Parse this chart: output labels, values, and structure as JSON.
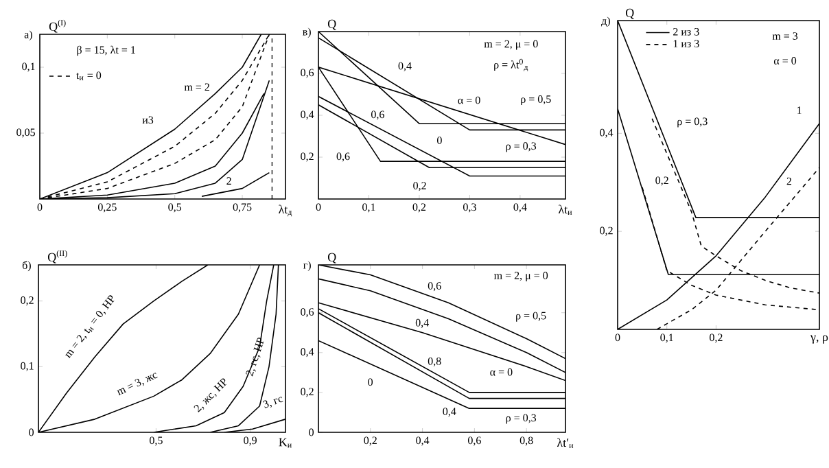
{
  "chart_data": [
    {
      "type": "line",
      "title": "а)",
      "ylabel": "Q$^{(I)}$",
      "xlabel": "λt$_{д}$",
      "xlim": [
        0,
        0.91
      ],
      "ylim": [
        0,
        0.125
      ],
      "xticks": [
        {
          "value": 0,
          "label": "0"
        },
        {
          "value": 0.25,
          "label": "0,25"
        },
        {
          "value": 0.5,
          "label": "0,5"
        },
        {
          "value": 0.75,
          "label": "0,75"
        }
      ],
      "yticks": [
        {
          "value": 0.05,
          "label": "0,05"
        },
        {
          "value": 0.1,
          "label": "0,1"
        }
      ],
      "legend": "top left",
      "series": [
        {
          "color": "#000000",
          "line_style": "solid",
          "x": [
            0,
            0.25,
            0.5,
            0.65,
            0.75,
            0.82
          ],
          "values": [
            0,
            0.02,
            0.053,
            0.08,
            0.1,
            0.125
          ]
        },
        {
          "name": "t$_{и}$ = 0",
          "color": "#000000",
          "line_style": "dashed",
          "x": [
            0,
            0.25,
            0.5,
            0.65,
            0.75,
            0.85
          ],
          "values": [
            0,
            0.013,
            0.04,
            0.065,
            0.09,
            0.125
          ]
        },
        {
          "color": "#000000",
          "line_style": "dashed",
          "x": [
            0,
            0.25,
            0.5,
            0.65,
            0.75,
            0.85
          ],
          "values": [
            0,
            0.008,
            0.027,
            0.045,
            0.07,
            0.125
          ]
        },
        {
          "color": "#000000",
          "line_style": "solid",
          "x": [
            0,
            0.25,
            0.5,
            0.65,
            0.75,
            0.83
          ],
          "values": [
            0,
            0.003,
            0.012,
            0.025,
            0.05,
            0.08
          ]
        },
        {
          "color": "#000000",
          "line_style": "solid",
          "x": [
            0,
            0.25,
            0.5,
            0.65,
            0.75,
            0.85
          ],
          "values": [
            0,
            0.001,
            0.004,
            0.012,
            0.03,
            0.09
          ]
        },
        {
          "color": "#000000",
          "line_style": "solid",
          "x": [
            0.6,
            0.75,
            0.85
          ],
          "values": [
            0.002,
            0.008,
            0.02
          ]
        },
        {
          "color": "#000000",
          "line_style": "dashed",
          "x": [
            0.86,
            0.86
          ],
          "values": [
            0,
            0.125
          ]
        }
      ],
      "annotations": [
        "β = 15,  λt = 1",
        "m = 2",
        "и3",
        "2"
      ]
    },
    {
      "type": "line",
      "title": "в)",
      "ylabel": "Q",
      "xlabel": "λt$_{и}$",
      "xlim": [
        0,
        0.49
      ],
      "ylim": [
        0,
        0.8
      ],
      "xticks": [
        {
          "value": 0,
          "label": "0"
        },
        {
          "value": 0.1,
          "label": "0,1"
        },
        {
          "value": 0.2,
          "label": "0,2"
        },
        {
          "value": 0.3,
          "label": "0,3"
        },
        {
          "value": 0.4,
          "label": "0,4"
        }
      ],
      "yticks": [
        {
          "value": 0.2,
          "label": "0,2"
        },
        {
          "value": 0.4,
          "label": "0,4"
        },
        {
          "value": 0.6,
          "label": "0,6"
        }
      ],
      "series": [
        {
          "color": "#000000",
          "line_style": "solid",
          "x": [
            0,
            0.2,
            0.49
          ],
          "values": [
            0.8,
            0.36,
            0.36
          ]
        },
        {
          "color": "#000000",
          "line_style": "solid",
          "x": [
            0,
            0.3,
            0.49
          ],
          "values": [
            0.77,
            0.33,
            0.33
          ]
        },
        {
          "color": "#000000",
          "line_style": "solid",
          "x": [
            0,
            0.49
          ],
          "values": [
            0.63,
            0.26
          ]
        },
        {
          "color": "#000000",
          "line_style": "solid",
          "x": [
            0,
            0.123,
            0.49
          ],
          "values": [
            0.63,
            0.18,
            0.18
          ]
        },
        {
          "color": "#000000",
          "line_style": "solid",
          "x": [
            0,
            0.3,
            0.49
          ],
          "values": [
            0.49,
            0.11,
            0.11
          ]
        },
        {
          "color": "#000000",
          "line_style": "solid",
          "x": [
            0,
            0.22,
            0.49
          ],
          "values": [
            0.45,
            0.15,
            0.15
          ]
        }
      ],
      "annotations": [
        "m = 2,  μ = 0",
        "ρ = λt$^{0}$$_{д}$",
        "α = 0",
        "ρ = 0,5",
        "ρ = 0,3",
        "0,4",
        "0,6",
        "0,6",
        "0",
        "0,2"
      ]
    },
    {
      "type": "line",
      "title": "д)",
      "ylabel": "Q",
      "xlabel": "γ, ρ",
      "xlim": [
        0,
        0.41
      ],
      "ylim": [
        0,
        0.63
      ],
      "xticks": [
        {
          "value": 0,
          "label": "0"
        },
        {
          "value": 0.1,
          "label": "0,1"
        },
        {
          "value": 0.2,
          "label": "0,2"
        }
      ],
      "yticks": [
        {
          "value": 0.2,
          "label": "0,2"
        },
        {
          "value": 0.4,
          "label": "0,4"
        }
      ],
      "legend": "top left",
      "series": [
        {
          "name": "2 из 3",
          "color": "#000000",
          "line_style": "solid",
          "x": [
            0,
            0.159,
            0.41
          ],
          "values": [
            0.63,
            0.228,
            0.228
          ]
        },
        {
          "color": "#000000",
          "line_style": "solid",
          "x": [
            0,
            0.103,
            0.41
          ],
          "values": [
            0.45,
            0.112,
            0.112
          ]
        },
        {
          "name": "1 из 3",
          "color": "#000000",
          "line_style": "dashed",
          "x": [
            0.07,
            0.15,
            0.17,
            0.2,
            0.25,
            0.3,
            0.35,
            0.41
          ],
          "values": [
            0.43,
            0.24,
            0.17,
            0.15,
            0.12,
            0.1,
            0.085,
            0.074
          ]
        },
        {
          "color": "#000000",
          "line_style": "dashed",
          "x": [
            0.05,
            0.1,
            0.15,
            0.2,
            0.3,
            0.41
          ],
          "values": [
            0.29,
            0.12,
            0.09,
            0.07,
            0.05,
            0.04
          ]
        },
        {
          "color": "#000000",
          "line_style": "solid",
          "x": [
            0,
            0.1,
            0.2,
            0.3,
            0.41
          ],
          "values": [
            0,
            0.06,
            0.15,
            0.27,
            0.42
          ]
        },
        {
          "color": "#000000",
          "line_style": "dashed",
          "x": [
            0.08,
            0.15,
            0.2,
            0.3,
            0.41
          ],
          "values": [
            0,
            0.04,
            0.08,
            0.2,
            0.33
          ]
        }
      ],
      "annotations": [
        "m = 3",
        "α = 0",
        "ρ = 0,3",
        "0,2",
        "1",
        "2"
      ]
    },
    {
      "type": "line",
      "title": "б)",
      "ylabel": "Q$^{(II)}$",
      "xlabel": "K$_{и}$",
      "xlim": [
        0,
        1.05
      ],
      "ylim": [
        0,
        0.255
      ],
      "xticks": [
        {
          "value": 0.5,
          "label": "0,5"
        },
        {
          "value": 0.9,
          "label": "0,9"
        }
      ],
      "yticks": [
        {
          "value": 0,
          "label": "0"
        },
        {
          "value": 0.1,
          "label": "0,1"
        },
        {
          "value": 0.2,
          "label": "0,2"
        }
      ],
      "series": [
        {
          "color": "#000000",
          "line_style": "solid",
          "x": [
            0,
            0.12,
            0.24,
            0.36,
            0.49,
            0.61,
            0.72
          ],
          "values": [
            0,
            0.06,
            0.115,
            0.165,
            0.2,
            0.23,
            0.255
          ]
        },
        {
          "color": "#000000",
          "line_style": "solid",
          "x": [
            0,
            0.24,
            0.49,
            0.61,
            0.73,
            0.85,
            0.94
          ],
          "values": [
            0,
            0.02,
            0.055,
            0.08,
            0.12,
            0.18,
            0.255
          ]
        },
        {
          "color": "#000000",
          "line_style": "solid",
          "x": [
            0.49,
            0.67,
            0.79,
            0.87,
            0.94,
            0.97,
            1.0
          ],
          "values": [
            0,
            0.01,
            0.03,
            0.07,
            0.13,
            0.2,
            0.255
          ]
        },
        {
          "color": "#000000",
          "line_style": "solid",
          "x": [
            0.73,
            0.85,
            0.94,
            0.98,
            1.01,
            1.02
          ],
          "values": [
            0,
            0.01,
            0.04,
            0.1,
            0.18,
            0.255
          ]
        },
        {
          "color": "#000000",
          "line_style": "solid",
          "x": [
            0.79,
            0.91,
            1.05
          ],
          "values": [
            0,
            0.005,
            0.02
          ]
        }
      ],
      "annotations": [
        "m = 2, t$_{и}$ = 0, НР",
        "m = 3, жс",
        "2, жс, НР",
        "2, гс, НР",
        "3, гс"
      ]
    },
    {
      "type": "line",
      "title": "г)",
      "ylabel": "Q",
      "xlabel": "λt′$_{и}$",
      "xlim": [
        0,
        0.95
      ],
      "ylim": [
        0,
        0.84
      ],
      "xticks": [
        {
          "value": 0.2,
          "label": "0,2"
        },
        {
          "value": 0.4,
          "label": "0,4"
        },
        {
          "value": 0.6,
          "label": "0,6"
        },
        {
          "value": 0.8,
          "label": "0,8"
        }
      ],
      "yticks": [
        {
          "value": 0,
          "label": "0"
        },
        {
          "value": 0.2,
          "label": "0,2"
        },
        {
          "value": 0.4,
          "label": "0,4"
        },
        {
          "value": 0.6,
          "label": "0,6"
        }
      ],
      "series": [
        {
          "color": "#000000",
          "line_style": "solid",
          "x": [
            0,
            0.2,
            0.5,
            0.8,
            0.95
          ],
          "values": [
            0.84,
            0.79,
            0.65,
            0.47,
            0.37
          ]
        },
        {
          "color": "#000000",
          "line_style": "solid",
          "x": [
            0,
            0.2,
            0.5,
            0.8,
            0.95
          ],
          "values": [
            0.77,
            0.71,
            0.57,
            0.4,
            0.3
          ]
        },
        {
          "color": "#000000",
          "line_style": "solid",
          "x": [
            0,
            0.4,
            0.8,
            0.95
          ],
          "values": [
            0.65,
            0.5,
            0.33,
            0.26
          ]
        },
        {
          "color": "#000000",
          "line_style": "solid",
          "x": [
            0,
            0.58,
            0.95
          ],
          "values": [
            0.62,
            0.2,
            0.2
          ]
        },
        {
          "color": "#000000",
          "line_style": "solid",
          "x": [
            0,
            0.58,
            0.95
          ],
          "values": [
            0.6,
            0.17,
            0.17
          ]
        },
        {
          "color": "#000000",
          "line_style": "solid",
          "x": [
            0,
            0.58,
            0.95
          ],
          "values": [
            0.46,
            0.12,
            0.12
          ]
        }
      ],
      "annotations": [
        "m = 2,  μ = 0",
        "ρ = 0,5",
        "ρ = 0,3",
        "0,6",
        "0,4",
        "α = 0",
        "0,8",
        "0",
        "0,4"
      ]
    }
  ]
}
